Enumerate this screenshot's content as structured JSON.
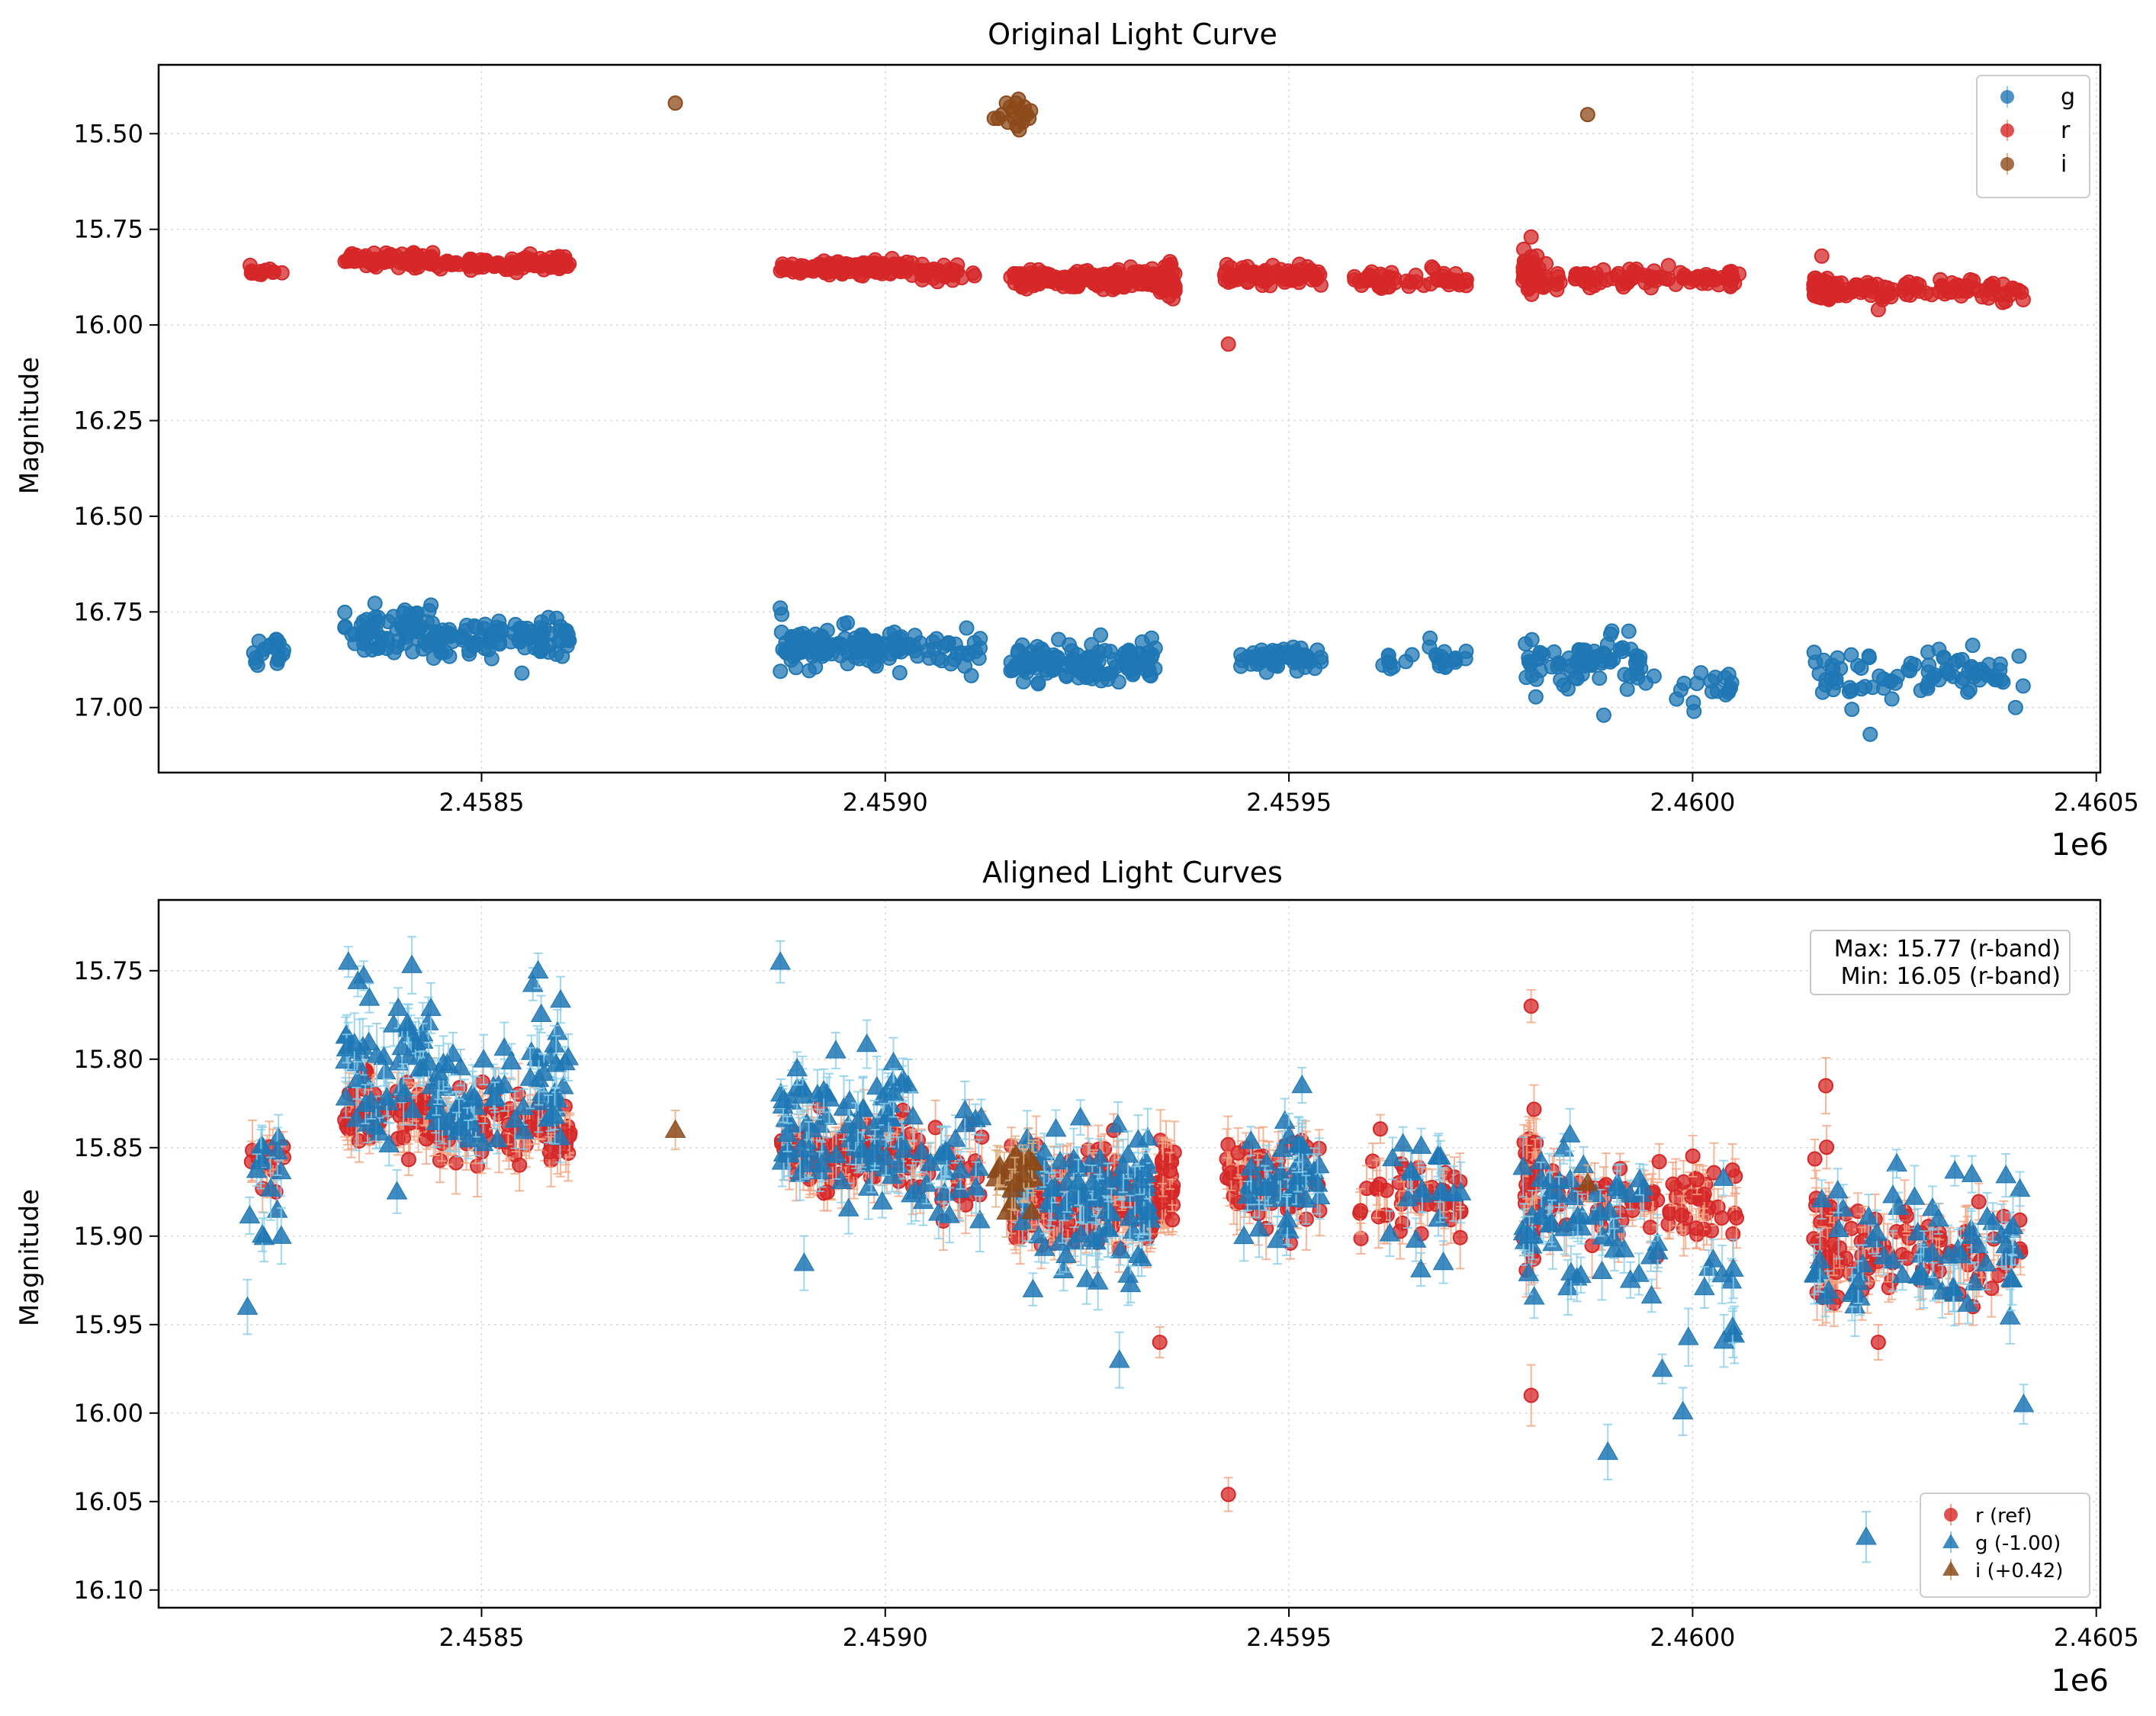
{
  "chart_data": [
    {
      "type": "scatter",
      "title": "Original Light Curve",
      "xlabel": "",
      "ylabel": "Magnitude",
      "x_offset_label": "1e6",
      "xlim": [
        2458100,
        2460505
      ],
      "ylim": [
        17.17,
        15.32
      ],
      "y_inverted": true,
      "grid": true,
      "legend": {
        "position": "top-right",
        "entries": [
          "g",
          "r",
          "i"
        ]
      },
      "xticks": [
        2458500,
        2459000,
        2459500,
        2460000,
        2460500
      ],
      "xtick_labels": [
        "2.4585",
        "2.4590",
        "2.4595",
        "2.4600",
        "2.4605"
      ],
      "yticks": [
        15.5,
        15.75,
        16.0,
        16.25,
        16.5,
        16.75,
        17.0
      ],
      "ytick_labels": [
        "15.50",
        "15.75",
        "16.00",
        "16.25",
        "16.50",
        "16.75",
        "17.00"
      ],
      "series": [
        {
          "name": "g",
          "color": "#1f77b4",
          "marker": "circle",
          "segments": [
            {
              "x0": 2458210,
              "x1": 2458255,
              "mean": 16.86,
              "spread": 0.04,
              "n": 18
            },
            {
              "x0": 2458330,
              "x1": 2458440,
              "mean": 16.8,
              "spread": 0.05,
              "n": 70
            },
            {
              "x0": 2458440,
              "x1": 2458610,
              "mean": 16.82,
              "spread": 0.04,
              "n": 95
            },
            {
              "x0": 2458870,
              "x1": 2459030,
              "mean": 16.84,
              "spread": 0.04,
              "n": 110
            },
            {
              "x0": 2459030,
              "x1": 2459120,
              "mean": 16.85,
              "spread": 0.04,
              "n": 30
            },
            {
              "x0": 2459155,
              "x1": 2459340,
              "mean": 16.88,
              "spread": 0.04,
              "n": 130
            },
            {
              "x0": 2459440,
              "x1": 2459540,
              "mean": 16.87,
              "spread": 0.03,
              "n": 60
            },
            {
              "x0": 2459610,
              "x1": 2459720,
              "mean": 16.87,
              "spread": 0.03,
              "n": 25
            },
            {
              "x0": 2459790,
              "x1": 2459940,
              "mean": 16.88,
              "spread": 0.05,
              "n": 75
            },
            {
              "x0": 2459940,
              "x1": 2460060,
              "mean": 16.95,
              "spread": 0.04,
              "n": 20
            },
            {
              "x0": 2460150,
              "x1": 2460410,
              "mean": 16.91,
              "spread": 0.05,
              "n": 85
            }
          ],
          "extra_points": [
            {
              "x": 2460220,
              "y": 17.07
            },
            {
              "x": 2459890,
              "y": 17.02
            },
            {
              "x": 2459900,
              "y": 16.8
            },
            {
              "x": 2458870,
              "y": 16.74
            },
            {
              "x": 2458550,
              "y": 16.91
            },
            {
              "x": 2460400,
              "y": 17.0
            }
          ]
        },
        {
          "name": "r",
          "color": "#d62728",
          "marker": "circle",
          "segments": [
            {
              "x0": 2458210,
              "x1": 2458255,
              "mean": 15.86,
              "spread": 0.015,
              "n": 12
            },
            {
              "x0": 2458330,
              "x1": 2458440,
              "mean": 15.83,
              "spread": 0.015,
              "n": 80
            },
            {
              "x0": 2458440,
              "x1": 2458610,
              "mean": 15.84,
              "spread": 0.015,
              "n": 110
            },
            {
              "x0": 2458870,
              "x1": 2459030,
              "mean": 15.85,
              "spread": 0.015,
              "n": 120
            },
            {
              "x0": 2459030,
              "x1": 2459120,
              "mean": 15.86,
              "spread": 0.02,
              "n": 35
            },
            {
              "x0": 2459155,
              "x1": 2459340,
              "mean": 15.88,
              "spread": 0.02,
              "n": 160
            },
            {
              "x0": 2459340,
              "x1": 2459360,
              "mean": 15.88,
              "spread": 0.04,
              "n": 40
            },
            {
              "x0": 2459420,
              "x1": 2459540,
              "mean": 15.87,
              "spread": 0.02,
              "n": 80
            },
            {
              "x0": 2459580,
              "x1": 2459720,
              "mean": 15.88,
              "spread": 0.02,
              "n": 50
            },
            {
              "x0": 2459790,
              "x1": 2459810,
              "mean": 15.87,
              "spread": 0.04,
              "n": 40
            },
            {
              "x0": 2459810,
              "x1": 2460060,
              "mean": 15.88,
              "spread": 0.02,
              "n": 90
            },
            {
              "x0": 2460150,
              "x1": 2460175,
              "mean": 15.9,
              "spread": 0.03,
              "n": 40
            },
            {
              "x0": 2460175,
              "x1": 2460410,
              "mean": 15.91,
              "spread": 0.02,
              "n": 90
            }
          ],
          "extra_points": [
            {
              "x": 2459425,
              "y": 16.05
            },
            {
              "x": 2460160,
              "y": 15.82
            },
            {
              "x": 2459800,
              "y": 15.77
            },
            {
              "x": 2460230,
              "y": 15.96
            }
          ]
        },
        {
          "name": "i",
          "color": "#8c4a1a",
          "marker": "circle",
          "points": [
            {
              "x": 2458740,
              "y": 15.42
            },
            {
              "x": 2459870,
              "y": 15.45
            },
            {
              "x": 2459150,
              "y": 15.42
            },
            {
              "x": 2459158,
              "y": 15.44
            },
            {
              "x": 2459165,
              "y": 15.41
            },
            {
              "x": 2459172,
              "y": 15.43
            },
            {
              "x": 2459145,
              "y": 15.45
            },
            {
              "x": 2459160,
              "y": 15.46
            },
            {
              "x": 2459168,
              "y": 15.44
            },
            {
              "x": 2459175,
              "y": 15.45
            },
            {
              "x": 2459152,
              "y": 15.47
            },
            {
              "x": 2459163,
              "y": 15.48
            },
            {
              "x": 2459170,
              "y": 15.47
            },
            {
              "x": 2459178,
              "y": 15.46
            },
            {
              "x": 2459140,
              "y": 15.46
            },
            {
              "x": 2459166,
              "y": 15.49
            },
            {
              "x": 2459155,
              "y": 15.43
            },
            {
              "x": 2459180,
              "y": 15.44
            },
            {
              "x": 2459135,
              "y": 15.46
            },
            {
              "x": 2459162,
              "y": 15.42
            }
          ]
        }
      ]
    },
    {
      "type": "scatter",
      "title": "Aligned Light Curves",
      "xlabel": "",
      "ylabel": "Magnitude",
      "x_offset_label": "1e6",
      "xlim": [
        2458100,
        2460505
      ],
      "ylim": [
        16.11,
        15.71
      ],
      "y_inverted": true,
      "grid": true,
      "legend": {
        "position": "bottom-right",
        "entries": [
          "r (ref)",
          "g (-1.00)",
          "i (+0.42)"
        ]
      },
      "annotation": {
        "position": "top-right",
        "lines": [
          "Max: 15.77 (r-band)",
          "Min: 16.05 (r-band)"
        ]
      },
      "xticks": [
        2458500,
        2459000,
        2459500,
        2460000,
        2460500
      ],
      "xtick_labels": [
        "2.4585",
        "2.4590",
        "2.4595",
        "2.4600",
        "2.4605"
      ],
      "yticks": [
        15.75,
        15.8,
        15.85,
        15.9,
        15.95,
        16.0,
        16.05,
        16.1
      ],
      "ytick_labels": [
        "15.75",
        "15.80",
        "15.85",
        "15.90",
        "15.95",
        "16.00",
        "16.05",
        "16.10"
      ],
      "series": [
        {
          "name": "r (ref)",
          "color": "#d62728",
          "error_color": "#f4a582",
          "marker": "circle",
          "segments": [
            {
              "x0": 2458210,
              "x1": 2458255,
              "mean": 15.86,
              "spread": 0.015,
              "n": 12
            },
            {
              "x0": 2458330,
              "x1": 2458440,
              "mean": 15.83,
              "spread": 0.015,
              "n": 70
            },
            {
              "x0": 2458440,
              "x1": 2458610,
              "mean": 15.84,
              "spread": 0.015,
              "n": 90
            },
            {
              "x0": 2458870,
              "x1": 2459030,
              "mean": 15.85,
              "spread": 0.015,
              "n": 100
            },
            {
              "x0": 2459030,
              "x1": 2459120,
              "mean": 15.86,
              "spread": 0.02,
              "n": 30
            },
            {
              "x0": 2459155,
              "x1": 2459340,
              "mean": 15.88,
              "spread": 0.02,
              "n": 140
            },
            {
              "x0": 2459340,
              "x1": 2459360,
              "mean": 15.87,
              "spread": 0.025,
              "n": 35
            },
            {
              "x0": 2459420,
              "x1": 2459540,
              "mean": 15.87,
              "spread": 0.02,
              "n": 70
            },
            {
              "x0": 2459580,
              "x1": 2459720,
              "mean": 15.88,
              "spread": 0.02,
              "n": 45
            },
            {
              "x0": 2459790,
              "x1": 2459810,
              "mean": 15.87,
              "spread": 0.03,
              "n": 40
            },
            {
              "x0": 2459810,
              "x1": 2460060,
              "mean": 15.88,
              "spread": 0.02,
              "n": 80
            },
            {
              "x0": 2460150,
              "x1": 2460175,
              "mean": 15.9,
              "spread": 0.03,
              "n": 40
            },
            {
              "x0": 2460175,
              "x1": 2460410,
              "mean": 15.91,
              "spread": 0.02,
              "n": 80
            }
          ],
          "extra_points": [
            {
              "x": 2459425,
              "y": 16.046
            },
            {
              "x": 2459800,
              "y": 15.77
            },
            {
              "x": 2459800,
              "y": 15.99
            },
            {
              "x": 2460165,
              "y": 15.815
            },
            {
              "x": 2460230,
              "y": 15.96
            },
            {
              "x": 2459340,
              "y": 15.96
            }
          ]
        },
        {
          "name": "g (-1.00)",
          "color": "#1f77b4",
          "error_color": "#87ceeb",
          "marker": "triangle",
          "segments": [
            {
              "x0": 2458210,
              "x1": 2458255,
              "mean": 15.87,
              "spread": 0.03,
              "n": 14
            },
            {
              "x0": 2458330,
              "x1": 2458440,
              "mean": 15.8,
              "spread": 0.035,
              "n": 55
            },
            {
              "x0": 2458440,
              "x1": 2458610,
              "mean": 15.82,
              "spread": 0.035,
              "n": 70
            },
            {
              "x0": 2458870,
              "x1": 2459030,
              "mean": 15.84,
              "spread": 0.035,
              "n": 80
            },
            {
              "x0": 2459030,
              "x1": 2459120,
              "mean": 15.85,
              "spread": 0.035,
              "n": 25
            },
            {
              "x0": 2459155,
              "x1": 2459340,
              "mean": 15.88,
              "spread": 0.035,
              "n": 100
            },
            {
              "x0": 2459440,
              "x1": 2459540,
              "mean": 15.87,
              "spread": 0.03,
              "n": 45
            },
            {
              "x0": 2459610,
              "x1": 2459720,
              "mean": 15.88,
              "spread": 0.03,
              "n": 20
            },
            {
              "x0": 2459790,
              "x1": 2459940,
              "mean": 15.89,
              "spread": 0.04,
              "n": 55
            },
            {
              "x0": 2459940,
              "x1": 2460060,
              "mean": 15.94,
              "spread": 0.04,
              "n": 18
            },
            {
              "x0": 2460150,
              "x1": 2460410,
              "mean": 15.91,
              "spread": 0.04,
              "n": 65
            }
          ],
          "extra_points": [
            {
              "x": 2458335,
              "y": 15.745
            },
            {
              "x": 2458570,
              "y": 15.75
            },
            {
              "x": 2458870,
              "y": 15.745
            },
            {
              "x": 2460215,
              "y": 16.07
            },
            {
              "x": 2459895,
              "y": 16.022
            },
            {
              "x": 2459290,
              "y": 15.97
            },
            {
              "x": 2458210,
              "y": 15.94
            },
            {
              "x": 2460410,
              "y": 15.995
            }
          ]
        },
        {
          "name": "i (+0.42)",
          "color": "#8c4a1a",
          "error_color": "#e0b080",
          "marker": "triangle",
          "segments": [
            {
              "x0": 2459135,
              "x1": 2459185,
              "mean": 15.865,
              "spread": 0.02,
              "n": 22
            }
          ],
          "extra_points": [
            {
              "x": 2458740,
              "y": 15.84
            },
            {
              "x": 2459870,
              "y": 15.87
            }
          ]
        }
      ]
    }
  ]
}
